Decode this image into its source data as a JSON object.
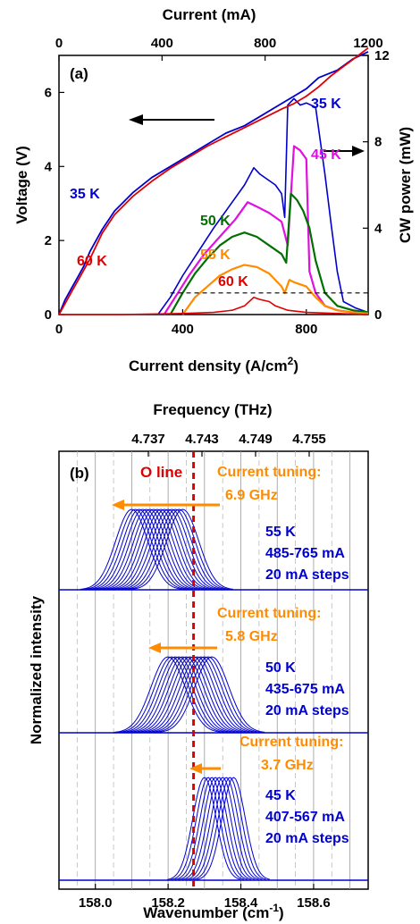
{
  "chart_data": [
    {
      "type": "line",
      "panel_label": "(a)",
      "top_axis": {
        "label": "Current (mA)",
        "ticks": [
          "0",
          "400",
          "800",
          "1200"
        ],
        "range": [
          0,
          1200
        ]
      },
      "x_axis": {
        "label": "Current density",
        "unit_prefix": "(A/cm",
        "unit_sup": "2",
        "unit_suffix": ")",
        "ticks": [
          "0",
          "400",
          "800"
        ],
        "range": [
          0,
          1000
        ]
      },
      "y_left": {
        "label": "Voltage (V)",
        "ticks": [
          "0",
          "2",
          "4",
          "6"
        ],
        "range": [
          0,
          7
        ]
      },
      "y_right": {
        "label": "CW power (mW)",
        "ticks": [
          "0",
          "4",
          "8",
          "12"
        ],
        "range": [
          0,
          12
        ]
      },
      "threshold_line_mW": 1.0,
      "arrow_left_label": "",
      "series_labels": {
        "v35": "35 K",
        "v60": "60 K",
        "p35": "35 K",
        "p45": "45 K",
        "p50": "50 K",
        "p55": "55 K",
        "p60": "60 K"
      },
      "colors": {
        "35 K": "#0000d0",
        "45 K": "#e010e0",
        "50 K": "#007000",
        "55 K": "#ff8c00",
        "60 K": "#e00000"
      },
      "voltage_series": [
        {
          "name": "35 K",
          "axis": "left",
          "x": [
            0,
            20,
            40,
            60,
            80,
            100,
            140,
            180,
            240,
            300,
            360,
            420,
            480,
            540,
            600,
            660,
            720,
            760,
            800,
            840,
            900,
            950,
            1000
          ],
          "y": [
            0,
            0.4,
            0.7,
            1.0,
            1.3,
            1.7,
            2.3,
            2.8,
            3.3,
            3.7,
            4.0,
            4.3,
            4.6,
            4.9,
            5.1,
            5.4,
            5.7,
            5.9,
            6.1,
            6.4,
            6.6,
            6.9,
            7.1
          ]
        },
        {
          "name": "60 K",
          "axis": "left",
          "x": [
            0,
            20,
            40,
            60,
            80,
            100,
            140,
            180,
            240,
            300,
            360,
            420,
            480,
            540,
            600,
            660,
            720,
            760,
            800,
            840,
            880,
            920,
            960,
            1000
          ],
          "y": [
            0,
            0.3,
            0.6,
            0.9,
            1.2,
            1.5,
            2.2,
            2.7,
            3.2,
            3.6,
            3.95,
            4.25,
            4.55,
            4.8,
            5.05,
            5.3,
            5.55,
            5.7,
            5.9,
            6.15,
            6.45,
            6.7,
            6.95,
            7.2
          ]
        }
      ],
      "power_series": [
        {
          "name": "35 K",
          "axis": "right",
          "x": [
            320,
            360,
            400,
            450,
            500,
            550,
            600,
            630,
            650,
            700,
            720,
            730,
            740,
            760,
            780,
            800,
            830,
            860,
            880,
            900,
            920,
            960,
            1000
          ],
          "y": [
            0,
            0.8,
            1.8,
            2.9,
            4.0,
            5.0,
            6.0,
            6.8,
            6.5,
            6.0,
            5.6,
            4.5,
            9.7,
            10.0,
            9.7,
            9.8,
            9.6,
            6.5,
            4.2,
            2.0,
            0.6,
            0.3,
            0.1
          ]
        },
        {
          "name": "45 K",
          "axis": "right",
          "x": [
            340,
            380,
            420,
            470,
            520,
            570,
            610,
            640,
            680,
            720,
            740,
            760,
            780,
            800,
            810,
            830,
            860,
            900,
            950,
            1000
          ],
          "y": [
            0,
            0.9,
            1.8,
            2.8,
            3.6,
            4.4,
            5.2,
            5.0,
            4.7,
            4.3,
            3.2,
            7.8,
            7.6,
            7.2,
            2.0,
            1.0,
            0.4,
            0.2,
            0.1,
            0.05
          ]
        },
        {
          "name": "50 K",
          "axis": "right",
          "x": [
            360,
            400,
            440,
            480,
            520,
            560,
            600,
            640,
            680,
            720,
            735,
            750,
            770,
            790,
            810,
            830,
            860,
            900,
            950,
            1000
          ],
          "y": [
            0,
            1.0,
            1.9,
            2.6,
            3.2,
            3.6,
            3.8,
            3.6,
            3.2,
            2.8,
            2.4,
            5.6,
            5.3,
            4.8,
            4.0,
            2.5,
            1.0,
            0.4,
            0.2,
            0.1
          ]
        },
        {
          "name": "55 K",
          "axis": "right",
          "x": [
            400,
            440,
            480,
            520,
            560,
            600,
            640,
            680,
            720,
            730,
            745,
            760,
            780,
            800,
            830,
            860,
            900,
            950,
            1000
          ],
          "y": [
            0,
            0.8,
            1.3,
            1.8,
            2.1,
            2.3,
            2.2,
            1.9,
            1.3,
            1.0,
            1.6,
            1.5,
            1.4,
            1.3,
            0.8,
            0.4,
            0.2,
            0.1,
            0.05
          ]
        },
        {
          "name": "60 K",
          "axis": "right",
          "x": [
            0,
            200,
            400,
            500,
            560,
            600,
            630,
            650,
            680,
            700,
            740,
            800,
            900,
            1000
          ],
          "y": [
            0,
            0,
            0.05,
            0.1,
            0.2,
            0.4,
            0.8,
            0.7,
            0.6,
            0.4,
            0.2,
            0.1,
            0.05,
            0
          ]
        }
      ]
    },
    {
      "type": "line",
      "panel_label": "(b)",
      "top_axis": {
        "label": "Frequency (THz)",
        "ticks": [
          "4.737",
          "4.743",
          "4.749",
          "4.755"
        ]
      },
      "x_axis": {
        "label": "Wavenumber",
        "unit_prefix": "(cm",
        "unit_sup": "-1",
        "unit_suffix": ")",
        "ticks": [
          "158.0",
          "158.2",
          "158.4",
          "158.6"
        ],
        "range": [
          157.9,
          158.75
        ]
      },
      "y_axis": {
        "label": "Normalized intensity"
      },
      "o_line": {
        "label": "O line",
        "wavenumber": 158.27
      },
      "groups": [
        {
          "temp": "55 K",
          "current": "485-765 mA",
          "step": "20 mA steps",
          "tuning_title": "Current tuning:",
          "tuning_value": "6.9 GHz",
          "peaks_cm": [
            158.1,
            158.11,
            158.12,
            158.13,
            158.14,
            158.15,
            158.16,
            158.17,
            158.18,
            158.19,
            158.2,
            158.21,
            158.22,
            158.23,
            158.24
          ]
        },
        {
          "temp": "50 K",
          "current": "435-675 mA",
          "step": "20 mA steps",
          "tuning_title": "Current tuning:",
          "tuning_value": "5.8 GHz",
          "peaks_cm": [
            158.2,
            158.21,
            158.22,
            158.23,
            158.24,
            158.25,
            158.26,
            158.27,
            158.28,
            158.29,
            158.3,
            158.31,
            158.32
          ]
        },
        {
          "temp": "45 K",
          "current": "407-567 mA",
          "step": "20 mA steps",
          "tuning_title": "Current tuning:",
          "tuning_value": "3.7 GHz",
          "peaks_cm": [
            158.3,
            158.31,
            158.32,
            158.33,
            158.34,
            158.35,
            158.36,
            158.37,
            158.38
          ]
        }
      ]
    }
  ]
}
